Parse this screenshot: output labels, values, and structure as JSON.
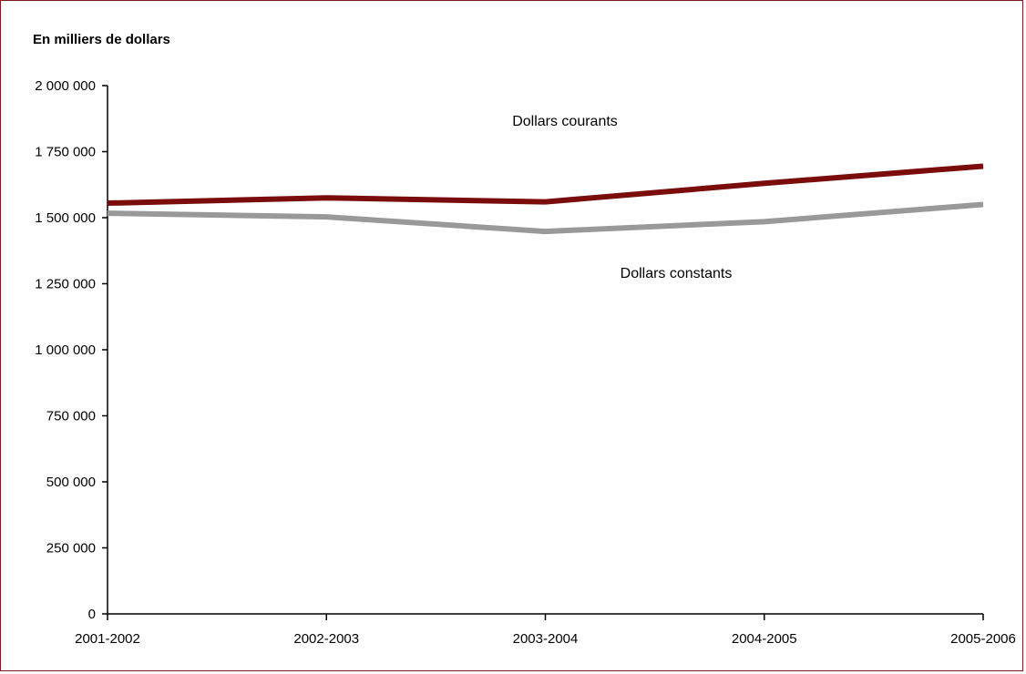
{
  "chart_data": {
    "type": "line",
    "ylabel": "En milliers de dollars",
    "categories": [
      "2001-2002",
      "2002-2003",
      "2003-2004",
      "2004-2005",
      "2005-2006"
    ],
    "y_ticks": [
      "0",
      "250 000",
      "500 000",
      "750 000",
      "1 000 000",
      "1 250 000",
      "1 500 000",
      "1 750 000",
      "2 000 000"
    ],
    "ylim": [
      0,
      2000000
    ],
    "grid": false,
    "series": [
      {
        "name": "Dollars courants",
        "color": "#7b0c0c",
        "values": [
          1555000,
          1575000,
          1560000,
          1630000,
          1695000
        ]
      },
      {
        "name": "Dollars constants",
        "color": "#999999",
        "values": [
          1517000,
          1503000,
          1448000,
          1485000,
          1550000
        ]
      }
    ]
  },
  "colors": {
    "frame": "#7a1a1a",
    "axis": "#000000"
  }
}
